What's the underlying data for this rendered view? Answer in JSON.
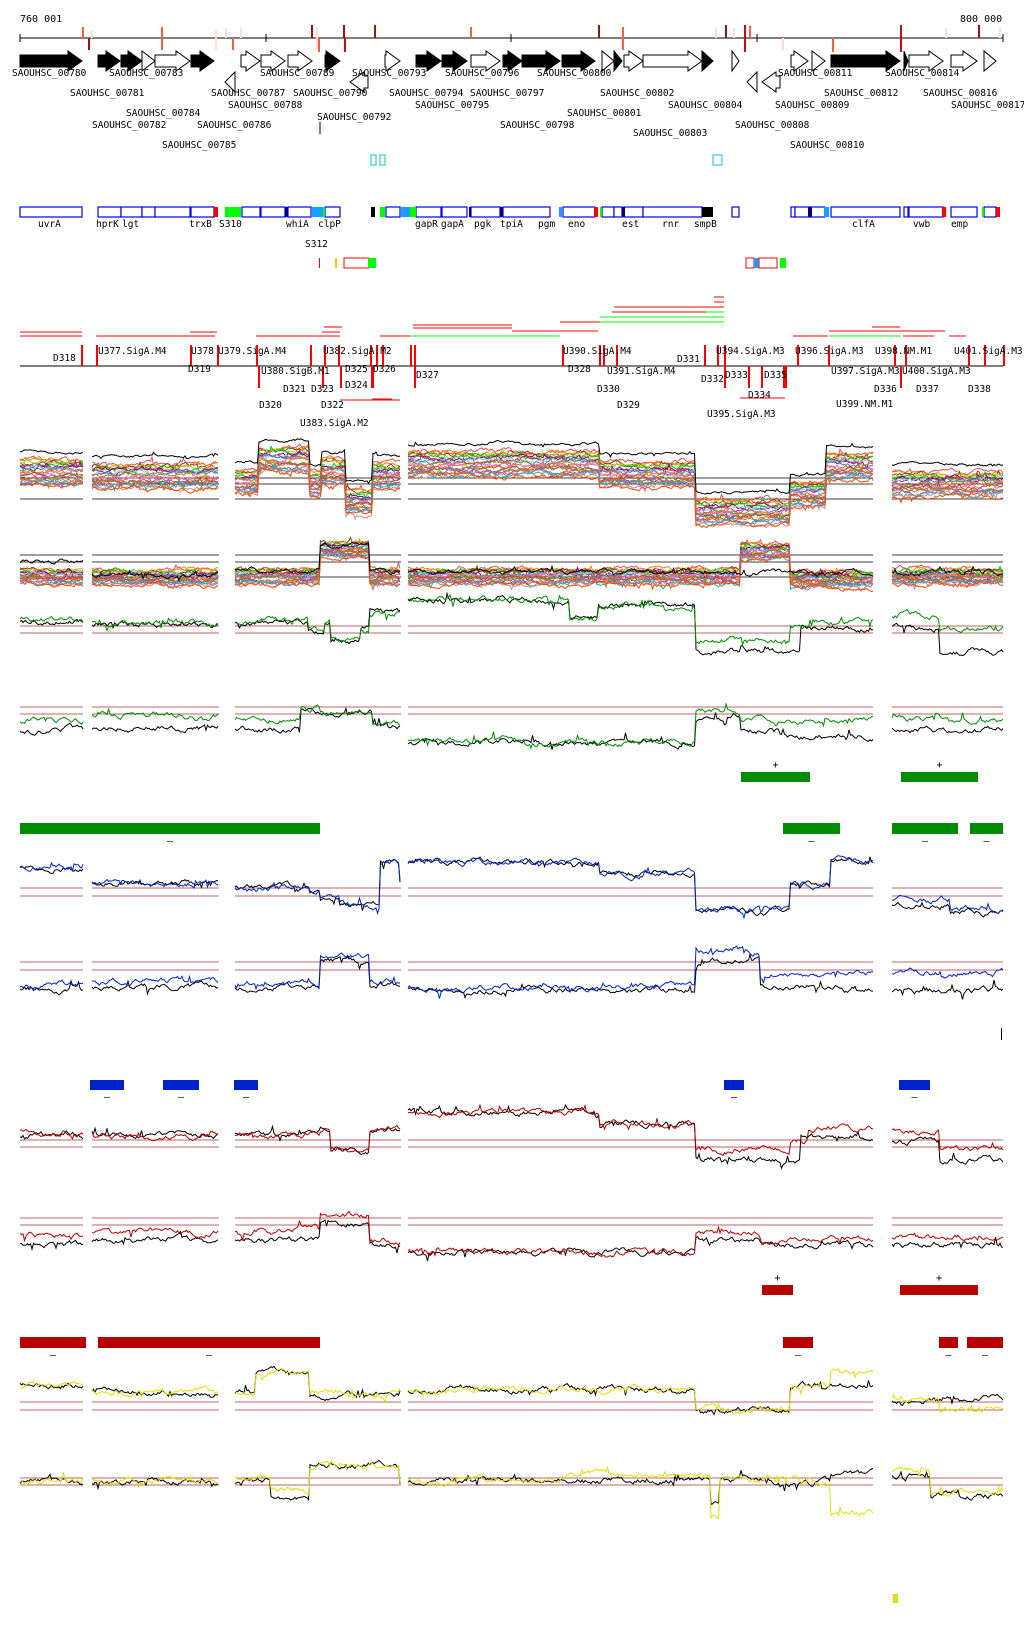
{
  "ruler": {
    "start_label": "760 001",
    "end_label": "800 000"
  },
  "genes": [
    {
      "name": "SAOUHSC_00780"
    },
    {
      "name": "SAOUHSC_00783"
    },
    {
      "name": "SAOUHSC_00789"
    },
    {
      "name": "SAOUHSC_00793"
    },
    {
      "name": "SAOUHSC_00796"
    },
    {
      "name": "SAOUHSC_00800"
    },
    {
      "name": "SAOUHSC_00802"
    },
    {
      "name": "SAOUHSC_00811"
    },
    {
      "name": "SAOUHSC_00814"
    },
    {
      "name": "SAOUHSC_00781"
    },
    {
      "name": "SAOUHSC_00784"
    },
    {
      "name": "SAOUHSC_00787"
    },
    {
      "name": "SAOUHSC_00790"
    },
    {
      "name": "SAOUHSC_00794"
    },
    {
      "name": "SAOUHSC_00797"
    },
    {
      "name": "SAOUHSC_00801"
    },
    {
      "name": "SAOUHSC_00803"
    },
    {
      "name": "SAOUHSC_00812"
    },
    {
      "name": "SAOUHSC_00816"
    },
    {
      "name": "SAOUHSC_00782"
    },
    {
      "name": "SAOUHSC_00785"
    },
    {
      "name": "SAOUHSC_00786"
    },
    {
      "name": "SAOUHSC_00788"
    },
    {
      "name": "SAOUHSC_00795"
    },
    {
      "name": "SAOUHSC_00798"
    },
    {
      "name": "SAOUHSC_00804"
    },
    {
      "name": "SAOUHSC_00808"
    },
    {
      "name": "SAOUHSC_00809"
    },
    {
      "name": "SAOUHSC_00810"
    },
    {
      "name": "SAOUHSC_00817"
    },
    {
      "name": "SAOUHSC_00792"
    }
  ],
  "operons": [
    "uvrA",
    "hprK",
    "lgt",
    "trxB",
    "S310",
    "whiA",
    "S312",
    "clpP",
    "gapR",
    "gapA",
    "pgk",
    "tpiA",
    "pgm",
    "eno",
    "est",
    "rnr",
    "smpB",
    "clfA",
    "vwb",
    "emp"
  ],
  "segments": [
    "D318",
    "U377.SigA.M4",
    "U378",
    "U379.SigA.M4",
    "U380.SigB.M1",
    "U382.SigA.M2",
    "D319",
    "D321",
    "D323",
    "D325",
    "D326",
    "D320",
    "D322",
    "D324",
    "U383.SigA.M2",
    "D327",
    "U390.SigA.M4",
    "U391.SigA.M4",
    "D328",
    "D330",
    "D329",
    "D331",
    "D332",
    "U394.SigA.M3",
    "D333",
    "D334",
    "D335",
    "U395.SigA.M3",
    "U396.SigA.M3",
    "U397.SigA.M3",
    "U398.NM.M1",
    "D336",
    "U400.SigA.M3",
    "U401.SigA.M3",
    "D337",
    "D338",
    "U399.NM.M1"
  ],
  "markers": {
    "plus": "+",
    "minus": "–"
  },
  "colors": {
    "gene_fill": "#000000",
    "operon_outline": "#0000ff",
    "tss_red": "#ff0000",
    "green_track": "#008c00",
    "blue_track": "#0022cc",
    "red_track": "#b80000",
    "yellow_track": "#e0e000",
    "reference_line": "#a03030"
  }
}
